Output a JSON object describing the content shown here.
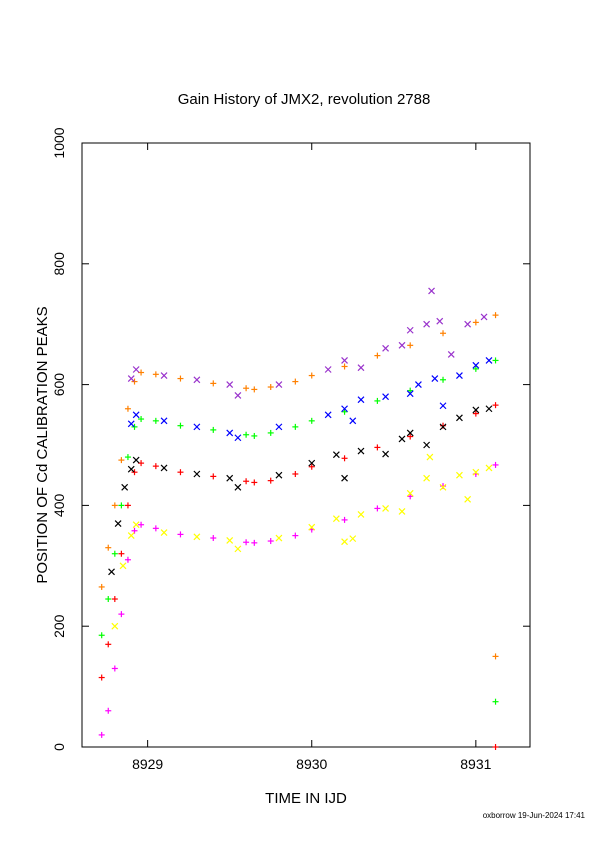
{
  "chart_data": {
    "type": "scatter",
    "title": "Gain History of JMX2, revolution 2788",
    "xlabel": "TIME IN IJD",
    "ylabel": "POSITION OF Cd CALIBRATION PEAKS",
    "xlim": [
      8928.6,
      8931.33
    ],
    "ylim": [
      0,
      1000
    ],
    "x_ticks": [
      "8929",
      "8930",
      "8931"
    ],
    "y_ticks": [
      "0",
      "200",
      "400",
      "600",
      "800",
      "1000"
    ],
    "footer": "oxborrow 19-Jun-2024 17:41",
    "grid": false,
    "series": [
      {
        "color": "#FF8000",
        "marker": "+",
        "values": [
          [
            8928.72,
            265
          ],
          [
            8928.76,
            330
          ],
          [
            8928.8,
            400
          ],
          [
            8928.84,
            475
          ],
          [
            8928.88,
            560
          ],
          [
            8928.92,
            605
          ],
          [
            8928.96,
            620
          ],
          [
            8929.05,
            617
          ],
          [
            8929.2,
            610
          ],
          [
            8929.4,
            602
          ],
          [
            8929.6,
            594
          ],
          [
            8929.65,
            592
          ],
          [
            8929.75,
            596
          ],
          [
            8929.9,
            605
          ],
          [
            8930.0,
            615
          ],
          [
            8930.2,
            630
          ],
          [
            8930.4,
            648
          ],
          [
            8930.6,
            665
          ],
          [
            8930.8,
            685
          ],
          [
            8931.0,
            703
          ],
          [
            8931.12,
            715
          ]
        ]
      },
      {
        "color": "#00FF00",
        "marker": "+",
        "values": [
          [
            8928.72,
            185
          ],
          [
            8928.76,
            245
          ],
          [
            8928.8,
            320
          ],
          [
            8928.84,
            400
          ],
          [
            8928.88,
            480
          ],
          [
            8928.92,
            530
          ],
          [
            8928.96,
            543
          ],
          [
            8929.05,
            540
          ],
          [
            8929.2,
            532
          ],
          [
            8929.4,
            525
          ],
          [
            8929.6,
            517
          ],
          [
            8929.65,
            515
          ],
          [
            8929.75,
            520
          ],
          [
            8929.9,
            530
          ],
          [
            8930.0,
            540
          ],
          [
            8930.2,
            555
          ],
          [
            8930.4,
            573
          ],
          [
            8930.6,
            590
          ],
          [
            8930.8,
            608
          ],
          [
            8931.0,
            626
          ],
          [
            8931.12,
            640
          ]
        ]
      },
      {
        "color": "#FF0000",
        "marker": "+",
        "values": [
          [
            8928.72,
            115
          ],
          [
            8928.76,
            170
          ],
          [
            8928.8,
            245
          ],
          [
            8928.84,
            320
          ],
          [
            8928.88,
            400
          ],
          [
            8928.92,
            455
          ],
          [
            8928.96,
            470
          ],
          [
            8929.05,
            465
          ],
          [
            8929.2,
            455
          ],
          [
            8929.4,
            448
          ],
          [
            8929.6,
            440
          ],
          [
            8929.65,
            438
          ],
          [
            8929.75,
            441
          ],
          [
            8929.9,
            452
          ],
          [
            8930.0,
            464
          ],
          [
            8930.2,
            478
          ],
          [
            8930.4,
            496
          ],
          [
            8930.6,
            514
          ],
          [
            8930.8,
            532
          ],
          [
            8931.0,
            552
          ],
          [
            8931.12,
            566
          ]
        ]
      },
      {
        "color": "#FF00FF",
        "marker": "+",
        "values": [
          [
            8928.72,
            20
          ],
          [
            8928.76,
            60
          ],
          [
            8928.8,
            130
          ],
          [
            8928.84,
            220
          ],
          [
            8928.88,
            310
          ],
          [
            8928.92,
            358
          ],
          [
            8928.96,
            368
          ],
          [
            8929.05,
            362
          ],
          [
            8929.2,
            352
          ],
          [
            8929.4,
            346
          ],
          [
            8929.6,
            339
          ],
          [
            8929.65,
            338
          ],
          [
            8929.75,
            341
          ],
          [
            8929.9,
            350
          ],
          [
            8930.0,
            360
          ],
          [
            8930.2,
            376
          ],
          [
            8930.4,
            395
          ],
          [
            8930.6,
            415
          ],
          [
            8930.8,
            432
          ],
          [
            8931.0,
            452
          ],
          [
            8931.12,
            467
          ]
        ]
      },
      {
        "color": "#9933CC",
        "marker": "x",
        "values": [
          [
            8928.9,
            610
          ],
          [
            8928.93,
            625
          ],
          [
            8929.1,
            615
          ],
          [
            8929.3,
            608
          ],
          [
            8929.5,
            600
          ],
          [
            8929.55,
            582
          ],
          [
            8929.8,
            600
          ],
          [
            8930.1,
            625
          ],
          [
            8930.2,
            640
          ],
          [
            8930.3,
            628
          ],
          [
            8930.45,
            660
          ],
          [
            8930.55,
            665
          ],
          [
            8930.6,
            690
          ],
          [
            8930.7,
            700
          ],
          [
            8930.73,
            755
          ],
          [
            8930.78,
            705
          ],
          [
            8930.85,
            650
          ],
          [
            8930.95,
            700
          ],
          [
            8931.05,
            712
          ]
        ]
      },
      {
        "color": "#0000FF",
        "marker": "x",
        "values": [
          [
            8928.9,
            535
          ],
          [
            8928.93,
            550
          ],
          [
            8929.1,
            540
          ],
          [
            8929.3,
            530
          ],
          [
            8929.5,
            520
          ],
          [
            8929.55,
            512
          ],
          [
            8929.8,
            530
          ],
          [
            8930.1,
            550
          ],
          [
            8930.2,
            560
          ],
          [
            8930.25,
            540
          ],
          [
            8930.3,
            575
          ],
          [
            8930.45,
            580
          ],
          [
            8930.6,
            585
          ],
          [
            8930.65,
            600
          ],
          [
            8930.75,
            610
          ],
          [
            8930.8,
            565
          ],
          [
            8930.9,
            615
          ],
          [
            8931.0,
            632
          ],
          [
            8931.08,
            640
          ]
        ]
      },
      {
        "color": "#000000",
        "marker": "x",
        "values": [
          [
            8928.78,
            290
          ],
          [
            8928.82,
            370
          ],
          [
            8928.86,
            430
          ],
          [
            8928.9,
            460
          ],
          [
            8928.93,
            475
          ],
          [
            8929.1,
            462
          ],
          [
            8929.3,
            452
          ],
          [
            8929.5,
            445
          ],
          [
            8929.55,
            430
          ],
          [
            8929.8,
            450
          ],
          [
            8930.0,
            470
          ],
          [
            8930.15,
            484
          ],
          [
            8930.2,
            445
          ],
          [
            8930.3,
            490
          ],
          [
            8930.45,
            485
          ],
          [
            8930.55,
            510
          ],
          [
            8930.6,
            520
          ],
          [
            8930.7,
            500
          ],
          [
            8930.8,
            530
          ],
          [
            8930.9,
            545
          ],
          [
            8931.0,
            558
          ],
          [
            8931.08,
            560
          ]
        ]
      },
      {
        "color": "#FFFF00",
        "marker": "x",
        "values": [
          [
            8928.8,
            200
          ],
          [
            8928.85,
            300
          ],
          [
            8928.9,
            350
          ],
          [
            8928.93,
            368
          ],
          [
            8929.1,
            355
          ],
          [
            8929.3,
            348
          ],
          [
            8929.5,
            342
          ],
          [
            8929.55,
            328
          ],
          [
            8929.8,
            346
          ],
          [
            8930.0,
            364
          ],
          [
            8930.15,
            378
          ],
          [
            8930.2,
            340
          ],
          [
            8930.25,
            345
          ],
          [
            8930.3,
            385
          ],
          [
            8930.45,
            395
          ],
          [
            8930.55,
            390
          ],
          [
            8930.6,
            420
          ],
          [
            8930.7,
            445
          ],
          [
            8930.72,
            480
          ],
          [
            8930.8,
            430
          ],
          [
            8930.9,
            450
          ],
          [
            8930.95,
            410
          ],
          [
            8931.0,
            455
          ],
          [
            8931.08,
            462
          ]
        ]
      },
      {
        "color": "#FF8000",
        "marker": "+",
        "values": [
          [
            8931.12,
            150
          ]
        ]
      },
      {
        "color": "#00FF00",
        "marker": "+",
        "values": [
          [
            8931.12,
            75
          ]
        ]
      },
      {
        "color": "#FF0000",
        "marker": "+",
        "values": [
          [
            8931.12,
            0
          ]
        ]
      }
    ]
  }
}
